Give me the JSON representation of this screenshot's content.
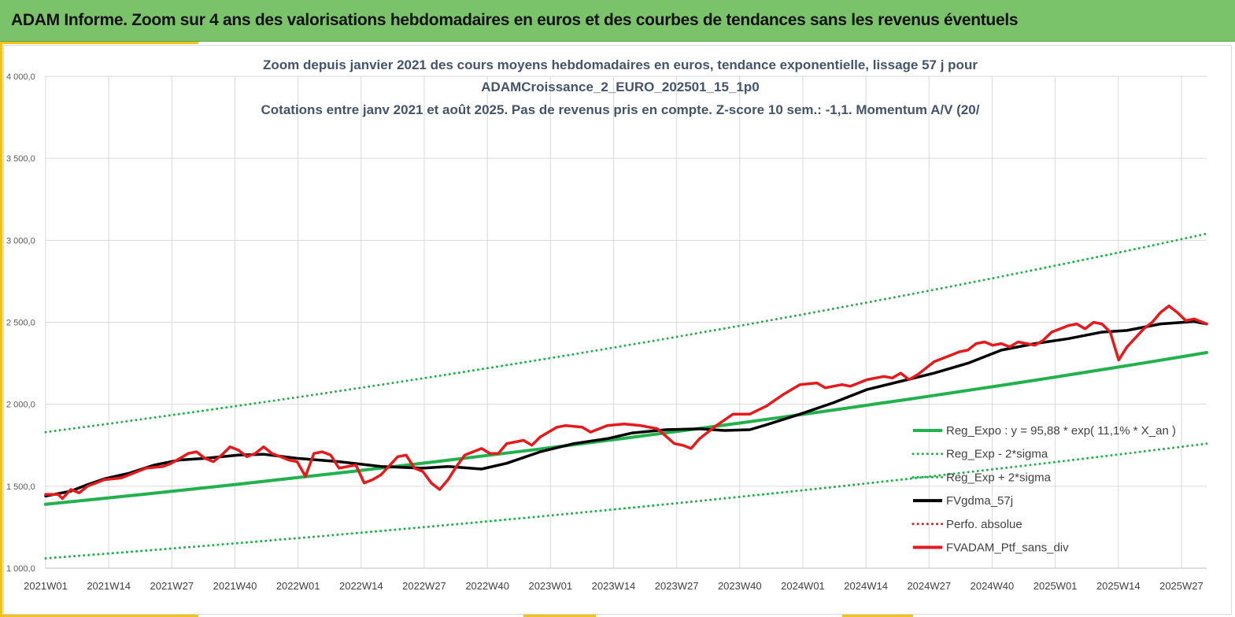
{
  "banner": {
    "title": "ADAM Informe. Zoom sur 4 ans des valorisations hebdomadaires en euros et des courbes de tendances sans les revenus éventuels"
  },
  "colors": {
    "banner": "#7ac36a",
    "accent": "#f2c21b",
    "reg_expo": "#22b14c",
    "fvgdma": "#000000",
    "fvadam": "#e41a1c",
    "perfo": "#e41a1c"
  },
  "chart_data": {
    "type": "line",
    "title_lines": [
      "Zoom depuis janvier 2021 des cours moyens hebdomadaires  en euros, tendance exponentielle, lissage 57 j pour",
      "ADAMCroissance_2_EURO_202501_15_1p0",
      "Cotations  entre janv 2021 et août 2025. Pas de revenus pris en compte. Z-score 10 sem.: -1,1. Momentum A/V (20/"
    ],
    "ylim": [
      1000,
      4000
    ],
    "y_ticks": [
      "1 000,0",
      "1 500,0",
      "2 000,0",
      "2 500,0",
      "3 000,0",
      "3 500,0",
      "4 000,0"
    ],
    "y_tick_values": [
      1000,
      1500,
      2000,
      2500,
      3000,
      3500,
      4000
    ],
    "x_ticks": [
      "2021W01",
      "2021W14",
      "2021W27",
      "2021W40",
      "2022W01",
      "2022W14",
      "2022W27",
      "2022W40",
      "2023W01",
      "2023W14",
      "2023W27",
      "2023W40",
      "2024W01",
      "2024W14",
      "2024W27",
      "2024W40",
      "2025W01",
      "2025W14",
      "2025W27"
    ],
    "x_range_weeks": [
      0,
      238
    ],
    "grid": true,
    "legend_position": "right",
    "series": [
      {
        "name": "Reg_Expo : y = 95,88 * exp( 11,1% *  X_an )",
        "style": "solid",
        "color": "#22b14c",
        "points": [
          [
            0,
            1390
          ],
          [
            238,
            2315
          ]
        ]
      },
      {
        "name": "Reg_Exp - 2*sigma",
        "style": "dotted",
        "color": "#22b14c",
        "points": [
          [
            0,
            1060
          ],
          [
            238,
            1760
          ]
        ]
      },
      {
        "name": "Reg_Exp + 2*sigma",
        "style": "dotted",
        "color": "#22b14c",
        "points": [
          [
            0,
            1830
          ],
          [
            238,
            3040
          ]
        ]
      },
      {
        "name": "FVgdma_57j",
        "style": "solid",
        "color": "#000000",
        "points": [
          [
            0,
            1440
          ],
          [
            6,
            1470
          ],
          [
            10,
            1510
          ],
          [
            14,
            1545
          ],
          [
            20,
            1580
          ],
          [
            26,
            1630
          ],
          [
            32,
            1660
          ],
          [
            38,
            1670
          ],
          [
            46,
            1690
          ],
          [
            52,
            1695
          ],
          [
            60,
            1670
          ],
          [
            70,
            1650
          ],
          [
            80,
            1620
          ],
          [
            90,
            1610
          ],
          [
            96,
            1620
          ],
          [
            104,
            1605
          ],
          [
            110,
            1640
          ],
          [
            118,
            1710
          ],
          [
            126,
            1760
          ],
          [
            134,
            1790
          ],
          [
            140,
            1825
          ],
          [
            148,
            1845
          ],
          [
            156,
            1850
          ],
          [
            162,
            1840
          ],
          [
            168,
            1845
          ],
          [
            172,
            1875
          ],
          [
            180,
            1940
          ],
          [
            188,
            2010
          ],
          [
            196,
            2090
          ],
          [
            204,
            2140
          ],
          [
            212,
            2190
          ],
          [
            220,
            2250
          ],
          [
            228,
            2330
          ],
          [
            236,
            2370
          ],
          [
            244,
            2400
          ],
          [
            252,
            2440
          ],
          [
            258,
            2450
          ],
          [
            266,
            2490
          ],
          [
            274,
            2505
          ],
          [
            277,
            2490
          ]
        ]
      },
      {
        "name": "Perfo. absolue",
        "style": "dotted",
        "color": "#e41a1c",
        "points": []
      },
      {
        "name": "FVADAM_Ptf_sans_div",
        "style": "solid",
        "color": "#e41a1c",
        "points": [
          [
            0,
            1450
          ],
          [
            3,
            1450
          ],
          [
            4,
            1425
          ],
          [
            6,
            1480
          ],
          [
            8,
            1460
          ],
          [
            10,
            1500
          ],
          [
            12,
            1520
          ],
          [
            14,
            1540
          ],
          [
            18,
            1550
          ],
          [
            20,
            1570
          ],
          [
            24,
            1610
          ],
          [
            28,
            1620
          ],
          [
            30,
            1640
          ],
          [
            34,
            1700
          ],
          [
            36,
            1710
          ],
          [
            38,
            1670
          ],
          [
            40,
            1650
          ],
          [
            42,
            1690
          ],
          [
            44,
            1740
          ],
          [
            46,
            1720
          ],
          [
            48,
            1680
          ],
          [
            50,
            1700
          ],
          [
            52,
            1740
          ],
          [
            54,
            1700
          ],
          [
            56,
            1680
          ],
          [
            58,
            1660
          ],
          [
            60,
            1650
          ],
          [
            62,
            1560
          ],
          [
            64,
            1700
          ],
          [
            66,
            1710
          ],
          [
            68,
            1690
          ],
          [
            70,
            1610
          ],
          [
            74,
            1630
          ],
          [
            76,
            1520
          ],
          [
            78,
            1540
          ],
          [
            80,
            1570
          ],
          [
            84,
            1680
          ],
          [
            86,
            1690
          ],
          [
            88,
            1610
          ],
          [
            90,
            1590
          ],
          [
            92,
            1520
          ],
          [
            94,
            1480
          ],
          [
            96,
            1540
          ],
          [
            98,
            1620
          ],
          [
            100,
            1690
          ],
          [
            104,
            1730
          ],
          [
            106,
            1700
          ],
          [
            108,
            1700
          ],
          [
            110,
            1760
          ],
          [
            112,
            1770
          ],
          [
            114,
            1780
          ],
          [
            116,
            1750
          ],
          [
            118,
            1800
          ],
          [
            122,
            1860
          ],
          [
            124,
            1870
          ],
          [
            128,
            1860
          ],
          [
            130,
            1830
          ],
          [
            134,
            1870
          ],
          [
            138,
            1880
          ],
          [
            142,
            1870
          ],
          [
            146,
            1850
          ],
          [
            150,
            1760
          ],
          [
            152,
            1750
          ],
          [
            154,
            1730
          ],
          [
            156,
            1790
          ],
          [
            160,
            1870
          ],
          [
            164,
            1940
          ],
          [
            168,
            1940
          ],
          [
            172,
            1990
          ],
          [
            176,
            2060
          ],
          [
            178,
            2090
          ],
          [
            180,
            2120
          ],
          [
            184,
            2130
          ],
          [
            186,
            2100
          ],
          [
            190,
            2120
          ],
          [
            192,
            2110
          ],
          [
            196,
            2150
          ],
          [
            200,
            2170
          ],
          [
            202,
            2160
          ],
          [
            204,
            2190
          ],
          [
            206,
            2150
          ],
          [
            208,
            2180
          ],
          [
            212,
            2260
          ],
          [
            216,
            2300
          ],
          [
            218,
            2320
          ],
          [
            220,
            2330
          ],
          [
            222,
            2370
          ],
          [
            224,
            2380
          ],
          [
            226,
            2360
          ],
          [
            228,
            2370
          ],
          [
            230,
            2350
          ],
          [
            232,
            2380
          ],
          [
            234,
            2370
          ],
          [
            236,
            2360
          ],
          [
            238,
            2390
          ],
          [
            240,
            2440
          ],
          [
            244,
            2480
          ],
          [
            246,
            2490
          ],
          [
            248,
            2460
          ],
          [
            250,
            2500
          ],
          [
            252,
            2490
          ],
          [
            254,
            2440
          ],
          [
            256,
            2270
          ],
          [
            258,
            2350
          ],
          [
            262,
            2460
          ],
          [
            264,
            2500
          ],
          [
            266,
            2560
          ],
          [
            268,
            2600
          ],
          [
            270,
            2560
          ],
          [
            272,
            2510
          ],
          [
            274,
            2520
          ],
          [
            276,
            2500
          ],
          [
            277,
            2490
          ]
        ]
      }
    ]
  }
}
